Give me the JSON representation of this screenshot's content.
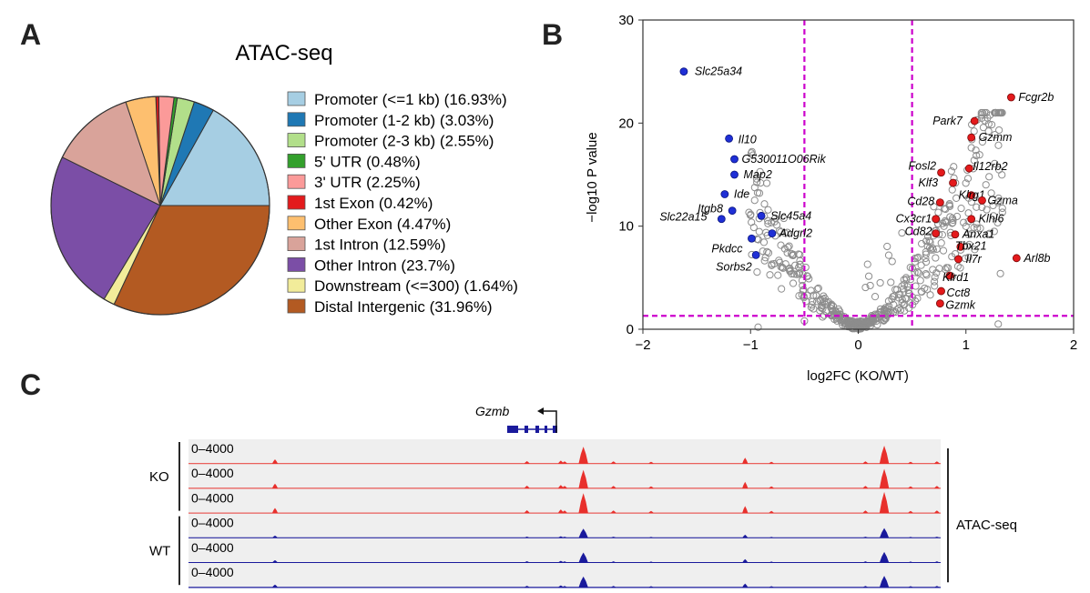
{
  "panels": {
    "a": "A",
    "b": "B",
    "c": "C"
  },
  "chart_data": [
    {
      "type": "pie",
      "title": "ATAC-seq",
      "legend_position": "right",
      "slices": [
        {
          "label": "Promoter (<=1 kb) (16.93%)",
          "value": 16.93,
          "color": "#a6cee3"
        },
        {
          "label": "Promoter (1-2 kb) (3.03%)",
          "value": 3.03,
          "color": "#1f78b4"
        },
        {
          "label": "Promoter (2-3 kb) (2.55%)",
          "value": 2.55,
          "color": "#b2df8a"
        },
        {
          "label": "5' UTR (0.48%)",
          "value": 0.48,
          "color": "#33a02c"
        },
        {
          "label": "3' UTR (2.25%)",
          "value": 2.25,
          "color": "#fb9a99"
        },
        {
          "label": "1st Exon (0.42%)",
          "value": 0.42,
          "color": "#e31a1c"
        },
        {
          "label": "Other Exon (4.47%)",
          "value": 4.47,
          "color": "#fdbf6f"
        },
        {
          "label": "1st Intron (12.59%)",
          "value": 12.59,
          "color": "#d9a39a"
        },
        {
          "label": "Other Intron (23.7%)",
          "value": 23.7,
          "color": "#7b4ea6"
        },
        {
          "label": "Downstream (<=300) (1.64%)",
          "value": 1.64,
          "color": "#f2ec9a"
        },
        {
          "label": "Distal Intergenic (31.96%)",
          "value": 31.96,
          "color": "#b35a22"
        }
      ]
    },
    {
      "type": "scatter",
      "xlabel": "log2FC (KO/WT)",
      "ylabel": "−log10 P value",
      "xlim": [
        -2,
        2
      ],
      "ylim": [
        0,
        30
      ],
      "xticks": [
        "−2",
        "−1",
        "0",
        "1",
        "2"
      ],
      "yticks": [
        "0",
        "10",
        "20",
        "30"
      ],
      "thresholds": {
        "x": [
          -0.5,
          0.5
        ],
        "y": 1.3
      },
      "colors": {
        "down": "#1f2fd6",
        "up": "#e41a1c",
        "background": "#8c8c8c",
        "threshold": "#cc00cc"
      },
      "down_genes": [
        {
          "name": "Slc25a34",
          "x": -1.62,
          "y": 25.0
        },
        {
          "name": "Il10",
          "x": -1.2,
          "y": 18.5
        },
        {
          "name": "G530011O06Rik",
          "x": -1.15,
          "y": 16.5
        },
        {
          "name": "Map2",
          "x": -1.15,
          "y": 15.0
        },
        {
          "name": "Ide",
          "x": -1.24,
          "y": 13.1
        },
        {
          "name": "Itgb8",
          "x": -1.17,
          "y": 11.5
        },
        {
          "name": "Slc22a15",
          "x": -1.27,
          "y": 10.7
        },
        {
          "name": "Slc45a4",
          "x": -0.9,
          "y": 11.0
        },
        {
          "name": "Pkdcc",
          "x": -0.99,
          "y": 8.8
        },
        {
          "name": "Adgrl2",
          "x": -0.8,
          "y": 9.3
        },
        {
          "name": "Sorbs2",
          "x": -0.95,
          "y": 7.2
        }
      ],
      "up_genes": [
        {
          "name": "Fcgr2b",
          "x": 1.42,
          "y": 22.5
        },
        {
          "name": "Park7",
          "x": 1.08,
          "y": 20.2
        },
        {
          "name": "Gzmm",
          "x": 1.05,
          "y": 18.6
        },
        {
          "name": "Fosl2",
          "x": 0.77,
          "y": 15.2
        },
        {
          "name": "Il12rb2",
          "x": 1.03,
          "y": 15.6
        },
        {
          "name": "Klf3",
          "x": 0.88,
          "y": 14.2
        },
        {
          "name": "Klrg1",
          "x": 1.05,
          "y": 13.0
        },
        {
          "name": "Gzma",
          "x": 1.15,
          "y": 12.5
        },
        {
          "name": "Cd28",
          "x": 0.76,
          "y": 12.3
        },
        {
          "name": "Cx3cr1",
          "x": 0.72,
          "y": 10.7
        },
        {
          "name": "Klhl6",
          "x": 1.05,
          "y": 10.7
        },
        {
          "name": "Cd82",
          "x": 0.72,
          "y": 9.3
        },
        {
          "name": "Anxa1",
          "x": 0.9,
          "y": 9.2
        },
        {
          "name": "Tbx21",
          "x": 0.95,
          "y": 8.0
        },
        {
          "name": "Arl8b",
          "x": 1.47,
          "y": 6.9
        },
        {
          "name": "Il7r",
          "x": 0.93,
          "y": 6.8
        },
        {
          "name": "Klrd1",
          "x": 0.85,
          "y": 5.2
        },
        {
          "name": "Cct8",
          "x": 0.77,
          "y": 3.7
        },
        {
          "name": "Gzmk",
          "x": 0.76,
          "y": 2.5
        }
      ]
    },
    {
      "type": "area",
      "gene": "Gzmb",
      "side_label": "ATAC-seq",
      "groups": [
        {
          "name": "KO",
          "color": "#e8302c",
          "tracks": [
            "0–4000",
            "0–4000",
            "0–4000"
          ]
        },
        {
          "name": "WT",
          "color": "#1a1a9c",
          "tracks": [
            "0–4000",
            "0–4000",
            "0–4000"
          ]
        }
      ],
      "track_range": [
        0,
        4000
      ],
      "peaks": [
        {
          "pos": 0.115,
          "height": 0.22
        },
        {
          "pos": 0.45,
          "height": 0.13
        },
        {
          "pos": 0.495,
          "height": 0.16
        },
        {
          "pos": 0.5,
          "height": 0.12
        },
        {
          "pos": 0.525,
          "height": 0.85
        },
        {
          "pos": 0.565,
          "height": 0.12
        },
        {
          "pos": 0.615,
          "height": 0.1
        },
        {
          "pos": 0.74,
          "height": 0.3
        },
        {
          "pos": 0.775,
          "height": 0.1
        },
        {
          "pos": 0.9,
          "height": 0.12
        },
        {
          "pos": 0.925,
          "height": 0.9
        },
        {
          "pos": 0.96,
          "height": 0.1
        },
        {
          "pos": 0.995,
          "height": 0.12
        }
      ]
    }
  ]
}
